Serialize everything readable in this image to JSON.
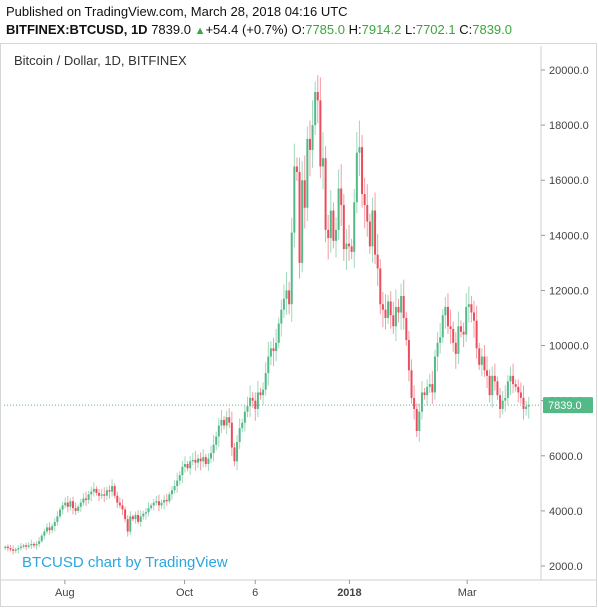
{
  "header": {
    "published": "Published on TradingView.com, March 28, 2018 04:16 UTC",
    "symbol": "BITFINEX:BTCUSD, 1D",
    "last": "7839.0",
    "change_arrow": "▲",
    "change": "+54.4 (+0.7%)",
    "o_label": "O:",
    "o_value": "7785.0",
    "h_label": "H:",
    "h_value": "7914.2",
    "l_label": "L:",
    "l_value": "7702.1",
    "c_label": "C:",
    "c_value": "7839.0"
  },
  "watermark": "BTCUSD chart by TradingView",
  "colors": {
    "up": "#53b987",
    "down": "#eb4d5c",
    "price_line": "#53b987",
    "label_bg": "#53b987"
  },
  "chart_data": {
    "type": "candlestick",
    "title": "Bitcoin / Dollar, 1D, BITFINEX",
    "ylim": [
      1500,
      20600
    ],
    "y_ticks": [
      "2000.0",
      "4000.0",
      "6000.0",
      "8000.0",
      "10000.0",
      "12000.0",
      "14000.0",
      "16000.0",
      "18000.0",
      "20000.0"
    ],
    "y_tick_values": [
      2000,
      4000,
      6000,
      8000,
      10000,
      12000,
      14000,
      16000,
      18000,
      20000
    ],
    "x_ticks": [
      "Aug",
      "Oct",
      "6",
      "2018",
      "Mar"
    ],
    "x_tick_positions_day": [
      31,
      92,
      128,
      176,
      236
    ],
    "x_day_start": 0,
    "x_day_end": 268,
    "last_price": 7839.0,
    "last_price_label": "7839.0",
    "grid": false,
    "close_series_daily_approx": [
      2700,
      2650,
      2600,
      2550,
      2600,
      2650,
      2700,
      2750,
      2700,
      2750,
      2800,
      2750,
      2800,
      2900,
      3100,
      3250,
      3400,
      3300,
      3450,
      3600,
      3800,
      4050,
      4200,
      4300,
      4150,
      4350,
      4100,
      4000,
      4150,
      4300,
      4450,
      4400,
      4600,
      4700,
      4800,
      4650,
      4550,
      4600,
      4550,
      4750,
      4700,
      4900,
      4550,
      4300,
      4200,
      4050,
      3700,
      3250,
      3800,
      3700,
      3850,
      3600,
      3800,
      3900,
      3950,
      4100,
      4200,
      4300,
      4350,
      4200,
      4300,
      4400,
      4350,
      4600,
      4750,
      4900,
      5100,
      5300,
      5600,
      5700,
      5550,
      5800,
      5850,
      5750,
      5900,
      5800,
      5950,
      5700,
      5900,
      6100,
      6400,
      6700,
      7100,
      7300,
      7100,
      7400,
      7200,
      6300,
      5800,
      6500,
      7000,
      7200,
      7600,
      7800,
      8100,
      8000,
      7700,
      8300,
      8200,
      8400,
      9000,
      9600,
      9900,
      9800,
      10100,
      10800,
      11300,
      11700,
      12000,
      11500,
      14100,
      16500,
      16300,
      13000,
      16000,
      15000,
      17500,
      17100,
      18000,
      19200,
      18900,
      16500,
      16800,
      14200,
      13900,
      14900,
      13800,
      14200,
      15700,
      15100,
      13500,
      13700,
      13600,
      13400,
      15200,
      17000,
      17200,
      15500,
      15100,
      14500,
      13600,
      14900,
      13300,
      12800,
      11500,
      11300,
      11000,
      11600,
      11100,
      10700,
      11400,
      11200,
      11800,
      11000,
      10200,
      9100,
      8100,
      7700,
      6900,
      7600,
      8300,
      8200,
      8500,
      8600,
      8300,
      9600,
      10100,
      10300,
      11100,
      11400,
      10700,
      10600,
      10100,
      9700,
      10700,
      10500,
      10400,
      11400,
      11500,
      11200,
      10900,
      9900,
      9300,
      9600,
      9100,
      8900,
      8200,
      8900,
      8700,
      8200,
      7700,
      8000,
      8100,
      8700,
      8900,
      8600,
      8500,
      8300,
      8100,
      7700,
      7785,
      7839
    ]
  }
}
